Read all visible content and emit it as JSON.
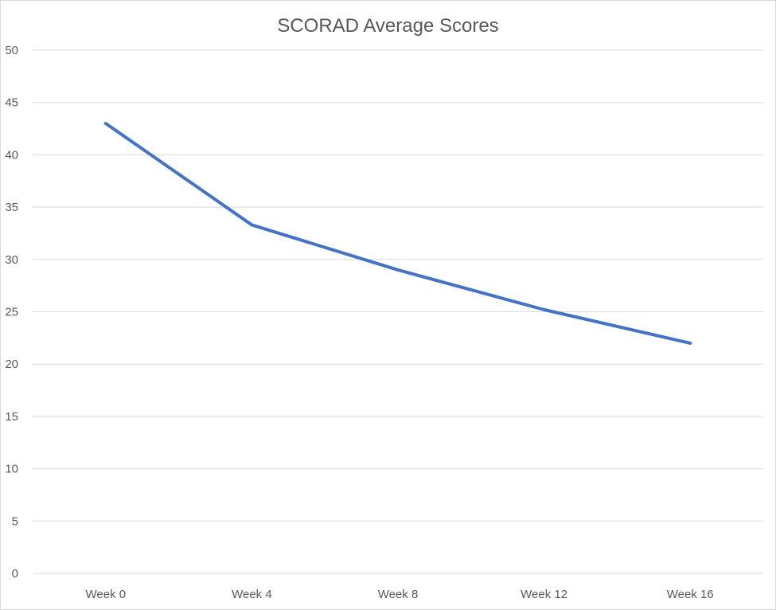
{
  "chart_data": {
    "type": "line",
    "title": "SCORAD Average Scores",
    "xlabel": "",
    "ylabel": "",
    "categories": [
      "Week 0",
      "Week 4",
      "Week 8",
      "Week 12",
      "Week 16"
    ],
    "series": [
      {
        "values": [
          43.0,
          33.3,
          29.0,
          25.2,
          22.0
        ],
        "color": "#4472C4"
      }
    ],
    "ylim": [
      0,
      50
    ],
    "yticks": [
      0,
      5,
      10,
      15,
      20,
      25,
      30,
      35,
      40,
      45,
      50
    ],
    "grid": true,
    "legend": "none"
  }
}
